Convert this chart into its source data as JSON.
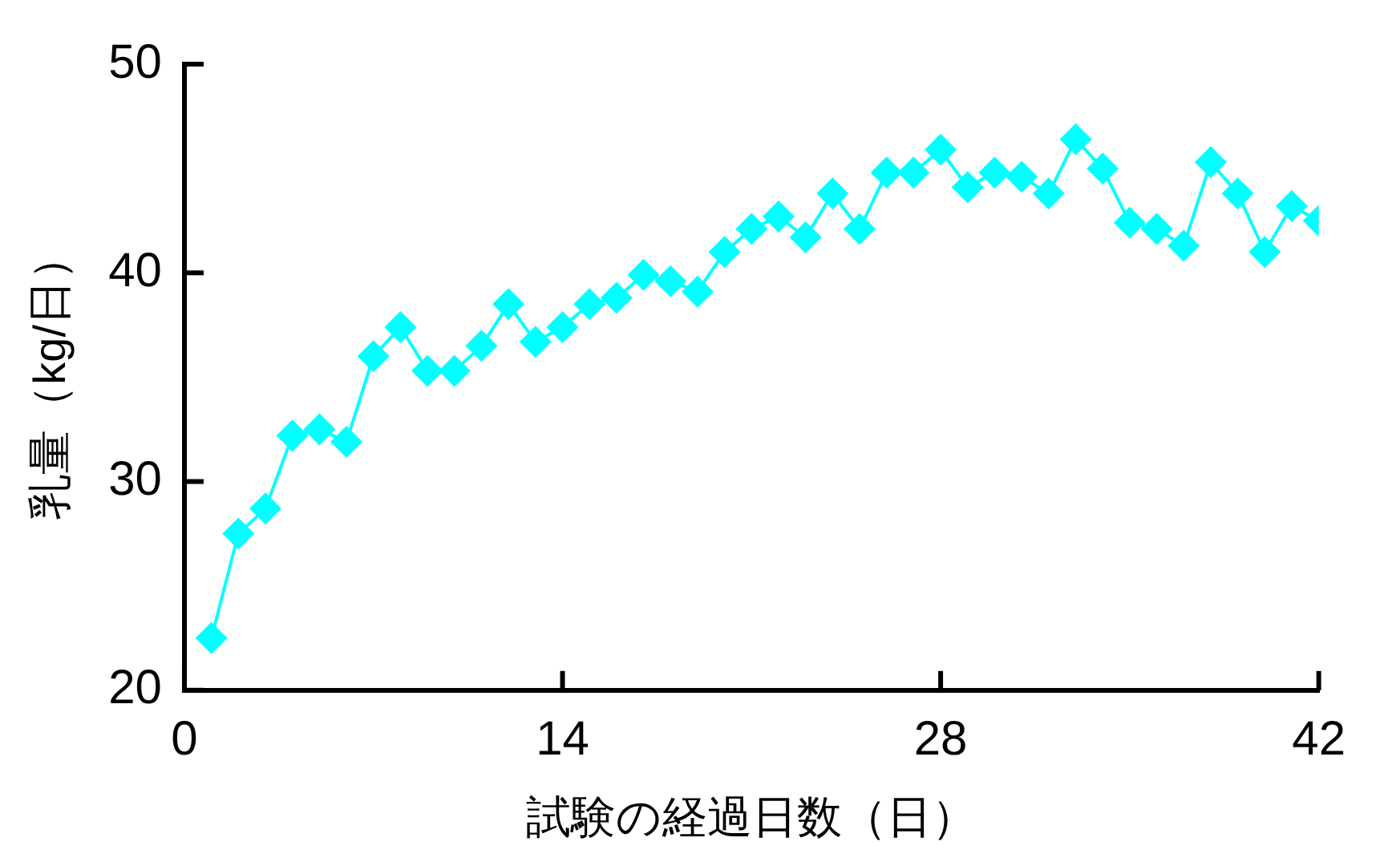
{
  "chart_data": {
    "type": "line",
    "xlabel": "試験の経過日数（日）",
    "ylabel": "乳量（kg/日）",
    "x": [
      1,
      2,
      3,
      4,
      5,
      6,
      7,
      8,
      9,
      10,
      11,
      12,
      13,
      14,
      15,
      16,
      17,
      18,
      19,
      20,
      21,
      22,
      23,
      24,
      25,
      26,
      27,
      28,
      29,
      30,
      31,
      32,
      33,
      34,
      35,
      36,
      37,
      38,
      39,
      40,
      41,
      42
    ],
    "series": [
      {
        "color": "#00ffff",
        "values": [
          22.5,
          27.5,
          28.7,
          32.2,
          32.5,
          31.9,
          36.0,
          37.4,
          35.3,
          35.3,
          36.5,
          38.5,
          36.7,
          37.4,
          38.5,
          38.8,
          39.9,
          39.6,
          39.1,
          41.0,
          42.1,
          42.7,
          41.7,
          43.8,
          42.1,
          44.8,
          44.8,
          45.9,
          44.1,
          44.8,
          44.6,
          43.8,
          46.4,
          45.0,
          42.4,
          42.1,
          41.3,
          45.3,
          43.8,
          41.0,
          43.2,
          42.5
        ]
      }
    ],
    "xlim": [
      0,
      42
    ],
    "xticks": [
      0,
      14,
      28,
      42
    ],
    "ylim": [
      20,
      50
    ],
    "yticks": [
      20,
      30,
      40,
      50
    ],
    "grid": false,
    "legend": false,
    "marker": "diamond",
    "line_style": "solid"
  }
}
